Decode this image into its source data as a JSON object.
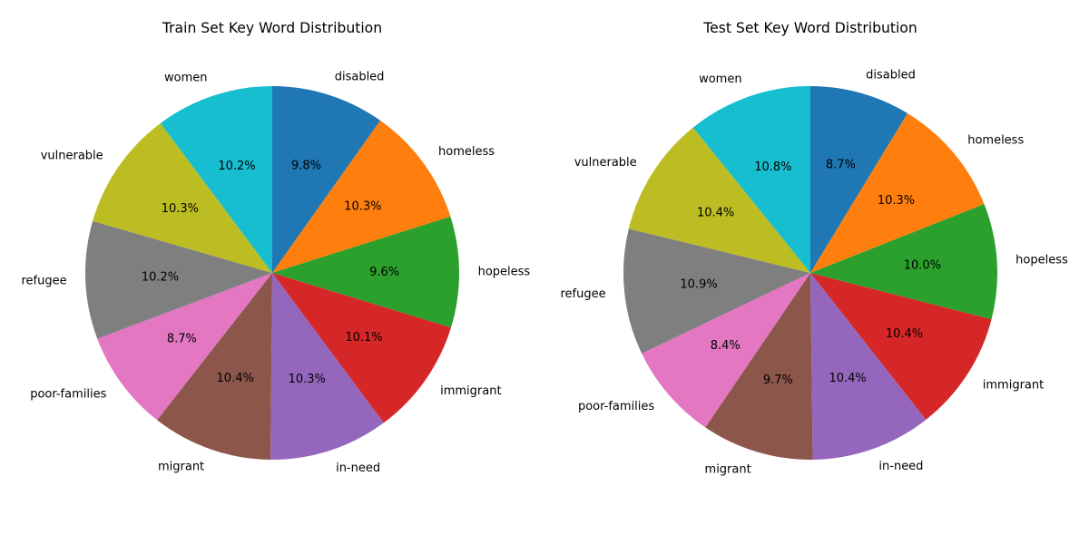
{
  "chart_data": [
    {
      "type": "pie",
      "title": "Train Set Key Word Distribution",
      "start_angle_deg": 90,
      "direction": "clockwise",
      "slices": [
        {
          "label": "disabled",
          "value": 9.8,
          "pct_label": "9.8%",
          "color": "#1f77b4"
        },
        {
          "label": "homeless",
          "value": 10.3,
          "pct_label": "10.3%",
          "color": "#ff7f0e"
        },
        {
          "label": "hopeless",
          "value": 9.6,
          "pct_label": "9.6%",
          "color": "#2ca02c"
        },
        {
          "label": "immigrant",
          "value": 10.1,
          "pct_label": "10.1%",
          "color": "#d62728"
        },
        {
          "label": "in-need",
          "value": 10.3,
          "pct_label": "10.3%",
          "color": "#9467bd"
        },
        {
          "label": "migrant",
          "value": 10.4,
          "pct_label": "10.4%",
          "color": "#8c564b"
        },
        {
          "label": "poor-families",
          "value": 8.7,
          "pct_label": "8.7%",
          "color": "#e377c2"
        },
        {
          "label": "refugee",
          "value": 10.2,
          "pct_label": "10.2%",
          "color": "#7f7f7f"
        },
        {
          "label": "vulnerable",
          "value": 10.3,
          "pct_label": "10.3%",
          "color": "#bcbd22"
        },
        {
          "label": "women",
          "value": 10.2,
          "pct_label": "10.2%",
          "color": "#17becf"
        }
      ]
    },
    {
      "type": "pie",
      "title": "Test Set Key Word Distribution",
      "start_angle_deg": 90,
      "direction": "clockwise",
      "slices": [
        {
          "label": "disabled",
          "value": 8.7,
          "pct_label": "8.7%",
          "color": "#1f77b4"
        },
        {
          "label": "homeless",
          "value": 10.3,
          "pct_label": "10.3%",
          "color": "#ff7f0e"
        },
        {
          "label": "hopeless",
          "value": 10.0,
          "pct_label": "10.0%",
          "color": "#2ca02c"
        },
        {
          "label": "immigrant",
          "value": 10.4,
          "pct_label": "10.4%",
          "color": "#d62728"
        },
        {
          "label": "in-need",
          "value": 10.4,
          "pct_label": "10.4%",
          "color": "#9467bd"
        },
        {
          "label": "migrant",
          "value": 9.7,
          "pct_label": "9.7%",
          "color": "#8c564b"
        },
        {
          "label": "poor-families",
          "value": 8.4,
          "pct_label": "8.4%",
          "color": "#e377c2"
        },
        {
          "label": "refugee",
          "value": 10.9,
          "pct_label": "10.9%",
          "color": "#7f7f7f"
        },
        {
          "label": "vulnerable",
          "value": 10.4,
          "pct_label": "10.4%",
          "color": "#bcbd22"
        },
        {
          "label": "women",
          "value": 10.8,
          "pct_label": "10.8%",
          "color": "#17becf"
        }
      ]
    }
  ]
}
